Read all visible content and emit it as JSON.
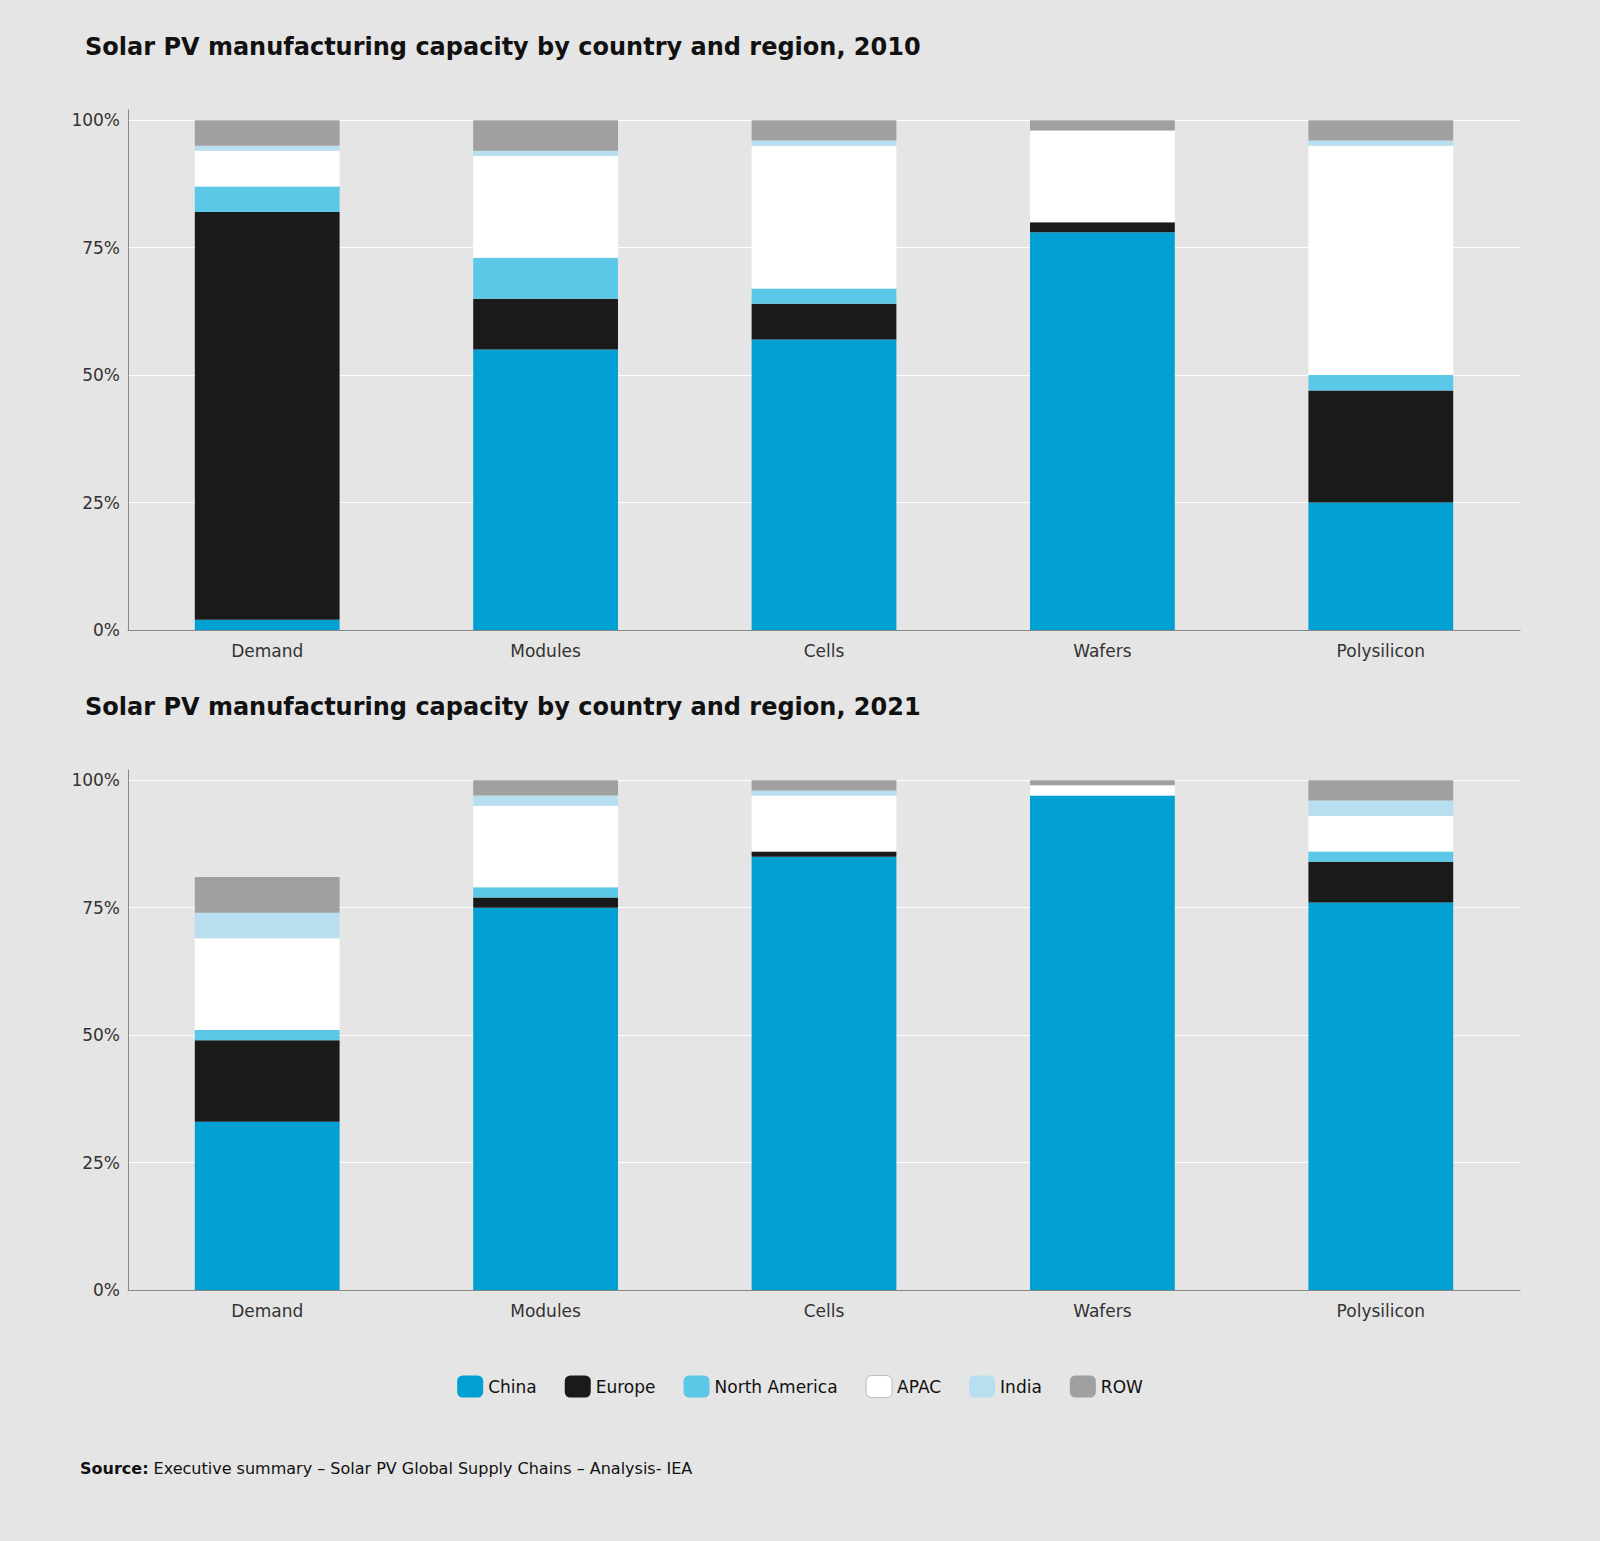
{
  "chart_data": [
    {
      "type": "bar",
      "title": "Solar PV manufacturing capacity by country and region, 2010",
      "categories": [
        "Demand",
        "Modules",
        "Cells",
        "Wafers",
        "Polysilicon"
      ],
      "series": [
        {
          "name": "China",
          "color": "#00a0d2",
          "values": [
            2,
            55,
            57,
            78,
            25
          ]
        },
        {
          "name": "Europe",
          "color": "#1a1a1a",
          "values": [
            80,
            10,
            7,
            2,
            22
          ]
        },
        {
          "name": "North America",
          "color": "#5bc8e8",
          "values": [
            5,
            8,
            3,
            0,
            3
          ]
        },
        {
          "name": "APAC",
          "color": "#ffffff",
          "values": [
            7,
            20,
            28,
            18,
            45
          ]
        },
        {
          "name": "India",
          "color": "#b8dff0",
          "values": [
            1,
            1,
            1,
            0,
            1
          ]
        },
        {
          "name": "ROW",
          "color": "#a0a0a0",
          "values": [
            5,
            6,
            4,
            2,
            4
          ]
        }
      ],
      "stacked": true,
      "ylim": [
        0,
        102
      ],
      "yticks": [
        {
          "value": 0,
          "label": "0%"
        },
        {
          "value": 25,
          "label": "25%"
        },
        {
          "value": 50,
          "label": "50%"
        },
        {
          "value": 75,
          "label": "75%"
        },
        {
          "value": 100,
          "label": "100%"
        }
      ],
      "grid": true,
      "legend": "bottom"
    },
    {
      "type": "bar",
      "title": "Solar PV manufacturing capacity by country and region, 2021",
      "categories": [
        "Demand",
        "Modules",
        "Cells",
        "Wafers",
        "Polysilicon"
      ],
      "series": [
        {
          "name": "China",
          "color": "#00a0d2",
          "values": [
            33,
            75,
            85,
            97,
            76
          ]
        },
        {
          "name": "Europe",
          "color": "#1a1a1a",
          "values": [
            16,
            2,
            1,
            0,
            8
          ]
        },
        {
          "name": "North America",
          "color": "#5bc8e8",
          "values": [
            2,
            2,
            0,
            0,
            2
          ]
        },
        {
          "name": "APAC",
          "color": "#ffffff",
          "values": [
            18,
            16,
            11,
            2,
            7
          ]
        },
        {
          "name": "India",
          "color": "#b8dff0",
          "values": [
            5,
            2,
            1,
            0,
            3
          ]
        },
        {
          "name": "ROW",
          "color": "#a0a0a0",
          "values": [
            7,
            3,
            2,
            1,
            4
          ]
        }
      ],
      "stacked": true,
      "ylim": [
        0,
        102
      ],
      "yticks": [
        {
          "value": 0,
          "label": "0%"
        },
        {
          "value": 25,
          "label": "25%"
        },
        {
          "value": 50,
          "label": "50%"
        },
        {
          "value": 75,
          "label": "75%"
        },
        {
          "value": 100,
          "label": "100%"
        }
      ],
      "grid": true,
      "legend": "bottom",
      "annotations": [
        "Source: Executive summary – Solar PV Global Supply Chains – Analysis- IEA"
      ]
    }
  ]
}
